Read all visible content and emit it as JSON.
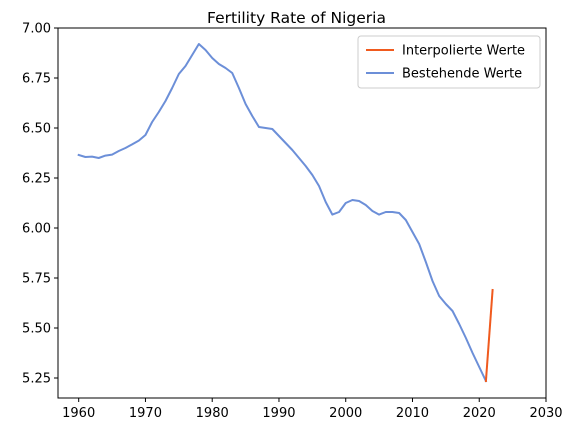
{
  "chart_data": {
    "type": "line",
    "title": "Fertility Rate of Nigeria",
    "xlabel": "",
    "ylabel": "",
    "xlim": [
      1956.9,
      2030
    ],
    "ylim": [
      5.15,
      7.0
    ],
    "xticks": [
      1960,
      1970,
      1980,
      1990,
      2000,
      2010,
      2020,
      2030
    ],
    "yticks": [
      5.25,
      5.5,
      5.75,
      6.0,
      6.25,
      6.5,
      6.75,
      7.0
    ],
    "ytick_labels": [
      "5.25",
      "5.50",
      "5.75",
      "6.00",
      "6.25",
      "6.50",
      "6.75",
      "7.00"
    ],
    "grid": false,
    "legend_position": "top-right",
    "series": [
      {
        "name": "Interpolierte Werte",
        "color": "#f05a1e",
        "x": [
          2021,
          2022
        ],
        "y": [
          5.235,
          5.69
        ]
      },
      {
        "name": "Bestehende Werte",
        "color": "#6c8fd8",
        "x": [
          1960,
          1961,
          1962,
          1963,
          1964,
          1965,
          1966,
          1967,
          1968,
          1969,
          1970,
          1971,
          1972,
          1973,
          1974,
          1975,
          1976,
          1977,
          1978,
          1979,
          1980,
          1981,
          1982,
          1983,
          1984,
          1985,
          1986,
          1987,
          1988,
          1989,
          1990,
          1991,
          1992,
          1993,
          1994,
          1995,
          1996,
          1997,
          1998,
          1999,
          2000,
          2001,
          2002,
          2003,
          2004,
          2005,
          2006,
          2007,
          2008,
          2009,
          2010,
          2011,
          2012,
          2013,
          2014,
          2015,
          2016,
          2017,
          2018,
          2019,
          2020,
          2021
        ],
        "y": [
          6.365,
          6.355,
          6.357,
          6.35,
          6.362,
          6.367,
          6.385,
          6.4,
          6.418,
          6.437,
          6.465,
          6.53,
          6.58,
          6.635,
          6.7,
          6.77,
          6.81,
          6.865,
          6.92,
          6.89,
          6.85,
          6.82,
          6.8,
          6.775,
          6.7,
          6.62,
          6.56,
          6.505,
          6.5,
          6.495,
          6.46,
          6.425,
          6.39,
          6.35,
          6.31,
          6.265,
          6.21,
          6.13,
          6.067,
          6.08,
          6.125,
          6.14,
          6.135,
          6.115,
          6.085,
          6.067,
          6.08,
          6.08,
          6.075,
          6.04,
          5.98,
          5.92,
          5.83,
          5.735,
          5.66,
          5.62,
          5.585,
          5.52,
          5.45,
          5.375,
          5.305,
          5.235
        ]
      }
    ]
  }
}
